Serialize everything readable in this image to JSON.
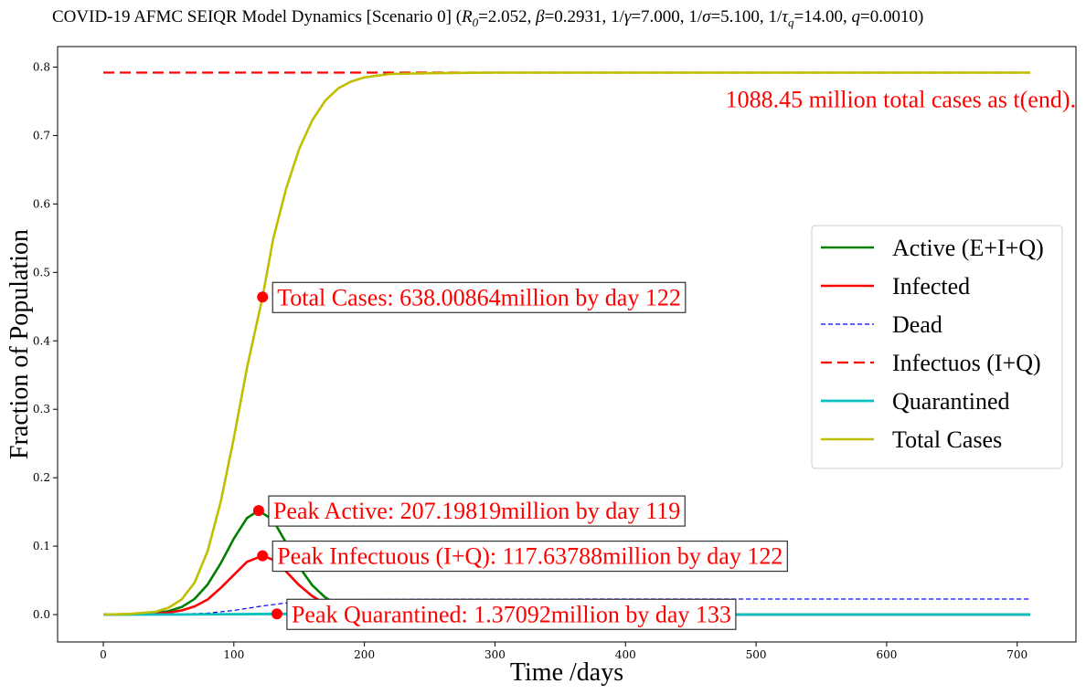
{
  "chart_data": {
    "type": "line",
    "title": "COVID-19 AFMC SEIQR Model Dynamics [Scenario 0] (",
    "title_params": [
      {
        "sym": "R",
        "sub": "0",
        "val": "=2.052, "
      },
      {
        "sym": "β",
        "sub": "",
        "val": "=0.2931, "
      },
      {
        "pre": "1/",
        "sym": "γ",
        "sub": "",
        "val": "=7.000, "
      },
      {
        "pre": "1/",
        "sym": "σ",
        "sub": "",
        "val": "=5.100, "
      },
      {
        "pre": "1/",
        "sym": "τ",
        "sub": "q",
        "val": "=14.00, "
      },
      {
        "sym": "q",
        "sub": "",
        "val": "=0.0010)"
      }
    ],
    "xlabel": "Time /days",
    "ylabel": "Fraction of Population",
    "xlim": [
      -35,
      745
    ],
    "ylim": [
      -0.04,
      0.83
    ],
    "xticks": [
      0,
      100,
      200,
      300,
      400,
      500,
      600,
      700
    ],
    "xtick_labels": [
      "0",
      "100",
      "200",
      "300",
      "400",
      "500",
      "600",
      "700"
    ],
    "yticks": [
      0.0,
      0.1,
      0.2,
      0.3,
      0.4,
      0.5,
      0.6,
      0.7,
      0.8
    ],
    "ytick_labels": [
      "0.0",
      "0.1",
      "0.2",
      "0.3",
      "0.4",
      "0.5",
      "0.6",
      "0.7",
      "0.8"
    ],
    "grid": false,
    "legend_position": "center-right",
    "series": [
      {
        "name": "Active (E+I+Q)",
        "color": "#008000",
        "style": "solid",
        "width": 2.6,
        "x": [
          0,
          20,
          40,
          50,
          60,
          70,
          80,
          90,
          100,
          110,
          119,
          130,
          140,
          150,
          160,
          170,
          180,
          200,
          250,
          300,
          400,
          500,
          600,
          710
        ],
        "y": [
          0,
          0.0005,
          0.002,
          0.005,
          0.011,
          0.023,
          0.044,
          0.075,
          0.111,
          0.141,
          0.152,
          0.138,
          0.105,
          0.07,
          0.043,
          0.025,
          0.014,
          0.005,
          0.0005,
          0.0001,
          0,
          0,
          0,
          0
        ]
      },
      {
        "name": "Infected",
        "color": "#ff0000",
        "style": "solid",
        "width": 2.6,
        "x": [
          0,
          20,
          40,
          50,
          60,
          70,
          80,
          90,
          100,
          110,
          122,
          130,
          140,
          150,
          160,
          170,
          180,
          200,
          250,
          300,
          400,
          500,
          600,
          710
        ],
        "y": [
          0,
          0.0003,
          0.001,
          0.003,
          0.006,
          0.012,
          0.022,
          0.039,
          0.058,
          0.077,
          0.086,
          0.08,
          0.063,
          0.043,
          0.027,
          0.016,
          0.009,
          0.003,
          0.0003,
          0,
          0,
          0,
          0,
          0
        ]
      },
      {
        "name": "Dead",
        "color": "#0000ff",
        "style": "thin-dashed",
        "width": 1.2,
        "x": [
          0,
          50,
          80,
          100,
          120,
          140,
          160,
          180,
          200,
          250,
          300,
          400,
          500,
          600,
          710
        ],
        "y": [
          0,
          0.0003,
          0.002,
          0.006,
          0.012,
          0.017,
          0.02,
          0.0215,
          0.022,
          0.0225,
          0.0226,
          0.0227,
          0.0227,
          0.0227,
          0.0227
        ]
      },
      {
        "name": "Infectuos (I+Q)",
        "color": "#ff0000",
        "style": "dashed",
        "width": 2.2,
        "x": [
          0,
          710
        ],
        "y": [
          0.792,
          0.792
        ]
      },
      {
        "name": "Quarantined",
        "color": "#00bfbf",
        "style": "solid",
        "width": 2.8,
        "x": [
          0,
          60,
          100,
          133,
          160,
          200,
          300,
          400,
          500,
          600,
          710
        ],
        "y": [
          0,
          0.0002,
          0.0006,
          0.001,
          0.0008,
          0.0004,
          0.0001,
          0,
          0,
          0,
          0
        ]
      },
      {
        "name": "Total Cases",
        "color": "#bfbf00",
        "style": "solid",
        "width": 2.6,
        "x": [
          0,
          20,
          40,
          50,
          60,
          70,
          80,
          90,
          100,
          110,
          122,
          130,
          140,
          150,
          160,
          170,
          180,
          190,
          200,
          220,
          250,
          300,
          400,
          500,
          600,
          710
        ],
        "y": [
          0,
          0.001,
          0.004,
          0.01,
          0.022,
          0.047,
          0.093,
          0.165,
          0.258,
          0.36,
          0.464,
          0.548,
          0.622,
          0.68,
          0.722,
          0.751,
          0.769,
          0.779,
          0.785,
          0.79,
          0.791,
          0.792,
          0.792,
          0.792,
          0.792,
          0.792
        ]
      }
    ],
    "markers": [
      {
        "x": 122,
        "y": 0.464,
        "color": "#ff0000"
      },
      {
        "x": 119,
        "y": 0.152,
        "color": "#ff0000"
      },
      {
        "x": 122,
        "y": 0.086,
        "color": "#ff0000"
      },
      {
        "x": 133,
        "y": 0.001,
        "color": "#ff0000"
      }
    ],
    "annotations": [
      {
        "text": "Total Cases: 638.00864million by day 122",
        "x": 122,
        "y": 0.464,
        "boxed": true
      },
      {
        "text": "Peak Active: 207.19819million by day 119",
        "x": 119,
        "y": 0.152,
        "boxed": true
      },
      {
        "text": "Peak Infectuous (I+Q): 117.63788million by day 122",
        "x": 122,
        "y": 0.086,
        "boxed": true
      },
      {
        "text": "Peak Quarantined: 1.37092million by day 133",
        "x": 133,
        "y": 0.001,
        "boxed": true
      },
      {
        "text": "1088.45 million total cases as t(end).",
        "x": 710,
        "y": 0.792,
        "boxed": false
      }
    ],
    "annotation_color": "#ff0000"
  }
}
